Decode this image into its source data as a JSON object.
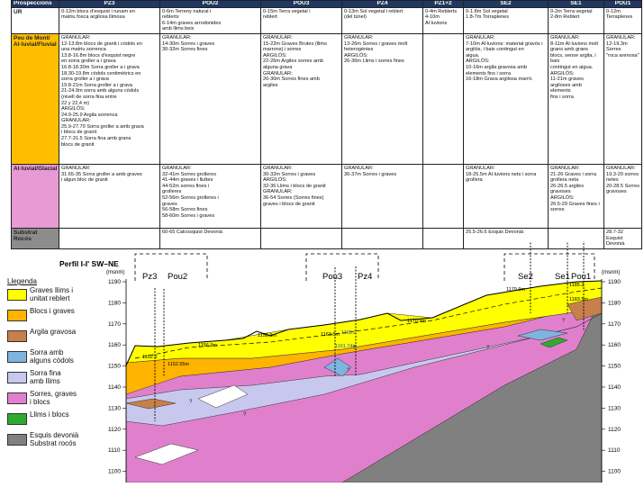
{
  "table": {
    "headers": [
      "Prospeccions",
      "PZ3",
      "POU2",
      "POU3",
      "PZ4",
      "PZ1+2",
      "SE2",
      "SE1",
      "POU1"
    ],
    "rows": [
      {
        "label": "UR",
        "cells": [
          "0-12m blocs d'esquist i runam en\nmatriu fosca argilosa llimosa",
          "0-6m Terreny natural i\nreblerts\n6-14m graves arrodonides\namb llims beix",
          "0-15m Terra vegetal i\nreblert",
          "0-13m Sol vegetal i reblert\n(del túnel)",
          "0-4m Reblerts\n4-10m Al·luvions",
          "0-1.8m Sol vegetal\n1.8-7m Torraplenes",
          "0-2m Terra vegetal\n2-8m Reblert",
          "0-12m Terraplenes"
        ]
      },
      {
        "label": "Peu de Mont/\nAl·luvial/Fluvial",
        "cells": [
          "GRANULAR:\n12-13.8m blocs de granit i còdols en\nuna matriu sorrenca\n13.8-16.8m blocs d'esquist negre\nen sorra groller a i grava\n16.8-18.30m Sorra groller a i grava\n18.30-19.8m còdols centimètrics en\nsorra groller a i grava\n19.8-21m Sorra groller a i grava\n21-24.9m sorra amb alguns còdols\n(nivell de sorra fina entre\n22 y 22,4 m)\nARGILÓS:\n24.9-25.9 Argila sorrenca\nGRANULAR:\n25.9-27.70 Sorra groller a amb grava\ni blocs de granit\n27.7-31.5 Sorra fina amb grans\nblocs de granit",
          "GRANULAR:\n14-30m Sorres i graves\n30-32m Sorres fines",
          "GRANULAR:\n15-22m Graves Brutes (llims\nmarrons) i sorres\nARGILÓS:\n22-26m Argiles sorres amb\nalguna grava\nGRANULAR:\n26-30m Sorres fines amb\nargiles",
          "GRANULAR:\n13-26m Sorres i graves molt\nheterogènies\nARGILÓS:\n26-36m Llims i sorres fines",
          "",
          "GRANULAR:\n7-10m Al·luvions: material gravós i\nargilós, i baix contingut en\naigua.\nARGILÓS:\n10-16m argila gravosa amb\nelements fins i sorra\n16-18m Grava argilosa marró.",
          "GRANULAR:\n8-11m Al·luvions molt grans amb grans\nblocs, sense argila, i baix\ncontingut en aigua.\nARGILÓS:\n11-21m graves argiloses amb elements\nfins i sorra",
          "GRANULAR:\n12-19.3m Sorres\n\"roca arenosa\""
        ]
      },
      {
        "label": "Al·luvial/Glacial",
        "cells": [
          "GRANULAR:\n31.65-35 Sorra groller a amb graves\ni algun bloc de granit",
          "GRANULAR:\n32-41m Sorres grolleres\n41-44m graves i lluttes\n44-52m sorres fines i\ngrolleres\n52-56m Sorres grolleres i\ngraves\n56-58m Sorres fines\n58-60m Sorres i graves",
          "GRANULAR:\n30-32m Sorres i graves\nARGILÓS:\n32-36 Llims i blocs de granit\nGRANULAR:\n36-54 Sorres (Sorres fines)\ngraves i blocs de granit",
          "GRANULAR:\n36-37m Sorres i graves",
          "",
          "GRANULAR:\n18-25.5m Al·luvions nets i sorra\ngrollera",
          "GRANULAR:\n21-26 Graves i sorra grollera neta\n26-26.5 argiles gravoses\nARGILÓS:\n26.5-29 Graves fines i sorres",
          "GRANULAR:\n19.3-20 sorres netes\n20-28.5 Sorres gravoses"
        ]
      },
      {
        "label": "Substrat Rocós",
        "cells": [
          "",
          "60-65 Calcosquist Devonià",
          "",
          "",
          "",
          "25.5-26.6 Esquis Devonià",
          "",
          "28.7-32 Esquist Devonià"
        ]
      }
    ]
  },
  "profile": {
    "title": "Perfil I-I' SW–NE",
    "unit": "(msnm)",
    "y_ticks": [
      "1190",
      "1180",
      "1170",
      "1160",
      "1150",
      "1140",
      "1130",
      "1120",
      "1110",
      "1100"
    ],
    "boreholes": [
      "Pz3",
      "Pou2",
      "Pou3",
      "Pz4",
      "Se2",
      "Se1",
      "Pou1"
    ],
    "water_labels": [
      "1156.9m",
      "1158.9m",
      "1170.9m",
      "1179.9m",
      "1185.2",
      "1183.5m",
      "1152.5",
      "1152.55m",
      "1163.5m",
      "1165.2",
      "1161.74m"
    ],
    "legend": {
      "title": "Llegenda",
      "items": [
        {
          "label": "Graves llims i\nunitat reblert",
          "color": "#ffff00"
        },
        {
          "label": "Blocs i graves",
          "color": "#ffb400"
        },
        {
          "label": "Argila gravosa",
          "color": "#c8804a"
        },
        {
          "label": "Sorra amb\nalguns còdols",
          "color": "#7fb3e0"
        },
        {
          "label": "Sorra fina\namb llims",
          "color": "#c8c8ee"
        },
        {
          "label": "Sorres, graves\ni blocs",
          "color": "#e080cc"
        },
        {
          "label": "Llims i blocs",
          "color": "#2eab2e"
        },
        {
          "label": "Esquis devonià\nSubstrat rocós",
          "color": "#808080"
        }
      ]
    }
  }
}
